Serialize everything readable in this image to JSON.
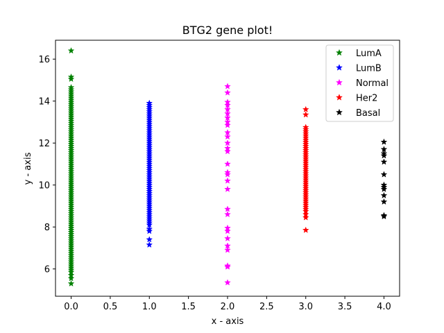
{
  "chart_data": {
    "type": "scatter",
    "title": "BTG2 gene plot!",
    "xlabel": "x - axis",
    "ylabel": "y - axis",
    "xlim": [
      -0.2,
      4.2
    ],
    "ylim": [
      4.7,
      16.9
    ],
    "xticks": [
      0.0,
      0.5,
      1.0,
      1.5,
      2.0,
      2.5,
      3.0,
      3.5,
      4.0
    ],
    "xtick_labels": [
      "0.0",
      "0.5",
      "1.0",
      "1.5",
      "2.0",
      "2.5",
      "3.0",
      "3.5",
      "4.0"
    ],
    "yticks": [
      6,
      8,
      10,
      12,
      14,
      16
    ],
    "ytick_labels": [
      "6",
      "8",
      "10",
      "12",
      "14",
      "16"
    ],
    "grid": false,
    "legend_position": "top-right",
    "marker": "star",
    "series": [
      {
        "name": "LumA",
        "color": "#008000",
        "x": 0,
        "y": [
          16.4,
          15.15,
          15.05,
          14.65,
          14.55,
          14.45,
          14.35,
          14.25,
          14.15,
          14.05,
          13.95,
          13.85,
          13.75,
          13.65,
          13.55,
          13.45,
          13.35,
          13.25,
          13.15,
          13.05,
          12.95,
          12.85,
          12.75,
          12.65,
          12.55,
          12.45,
          12.35,
          12.25,
          12.15,
          12.05,
          11.95,
          11.85,
          11.75,
          11.65,
          11.55,
          11.45,
          11.35,
          11.25,
          11.15,
          11.05,
          10.95,
          10.85,
          10.75,
          10.65,
          10.55,
          10.45,
          10.35,
          10.25,
          10.15,
          10.05,
          9.95,
          9.85,
          9.75,
          9.65,
          9.55,
          9.45,
          9.35,
          9.25,
          9.15,
          9.05,
          8.95,
          8.85,
          8.75,
          8.65,
          8.55,
          8.45,
          8.35,
          8.25,
          8.15,
          8.05,
          7.95,
          7.85,
          7.75,
          7.65,
          7.55,
          7.45,
          7.35,
          7.25,
          7.15,
          7.05,
          6.95,
          6.85,
          6.75,
          6.65,
          6.55,
          6.45,
          6.35,
          6.25,
          6.15,
          6.05,
          5.95,
          5.85,
          5.7,
          5.55,
          5.3
        ]
      },
      {
        "name": "LumB",
        "color": "#0000ff",
        "x": 1,
        "y": [
          13.9,
          13.8,
          13.7,
          13.6,
          13.5,
          13.4,
          13.3,
          13.2,
          13.1,
          13.0,
          12.9,
          12.8,
          12.7,
          12.6,
          12.5,
          12.4,
          12.3,
          12.2,
          12.1,
          12.0,
          11.9,
          11.8,
          11.7,
          11.6,
          11.5,
          11.4,
          11.3,
          11.2,
          11.1,
          11.0,
          10.9,
          10.8,
          10.7,
          10.6,
          10.5,
          10.4,
          10.3,
          10.2,
          10.1,
          10.0,
          9.9,
          9.8,
          9.7,
          9.6,
          9.5,
          9.4,
          9.3,
          9.2,
          9.1,
          9.0,
          8.9,
          8.8,
          8.7,
          8.6,
          8.5,
          8.4,
          8.3,
          8.2,
          8.1,
          7.9,
          7.8,
          7.4,
          7.15
        ]
      },
      {
        "name": "Normal",
        "color": "#ff00ff",
        "x": 2,
        "y": [
          14.7,
          14.4,
          13.95,
          13.8,
          13.6,
          13.4,
          13.2,
          13.0,
          12.85,
          12.5,
          12.3,
          12.0,
          11.75,
          11.6,
          11.0,
          10.6,
          10.5,
          10.2,
          9.8,
          8.85,
          8.6,
          7.95,
          7.8,
          7.45,
          7.1,
          6.9,
          6.15,
          6.1,
          5.35
        ]
      },
      {
        "name": "Her2",
        "color": "#ff0000",
        "x": 3,
        "y": [
          13.6,
          13.35,
          12.75,
          12.65,
          12.55,
          12.45,
          12.35,
          12.25,
          12.15,
          12.05,
          11.95,
          11.85,
          11.75,
          11.65,
          11.55,
          11.45,
          11.35,
          11.25,
          11.15,
          11.05,
          10.95,
          10.85,
          10.75,
          10.65,
          10.55,
          10.45,
          10.35,
          10.25,
          10.15,
          10.05,
          9.95,
          9.85,
          9.75,
          9.65,
          9.55,
          9.45,
          9.35,
          9.25,
          9.15,
          9.05,
          8.95,
          8.85,
          8.75,
          8.6,
          8.45,
          7.85
        ]
      },
      {
        "name": "Basal",
        "color": "#000000",
        "x": 4,
        "y": [
          12.05,
          11.7,
          11.5,
          11.4,
          11.1,
          10.5,
          10.0,
          9.9,
          9.8,
          9.5,
          9.2,
          8.55,
          8.5
        ]
      }
    ]
  }
}
